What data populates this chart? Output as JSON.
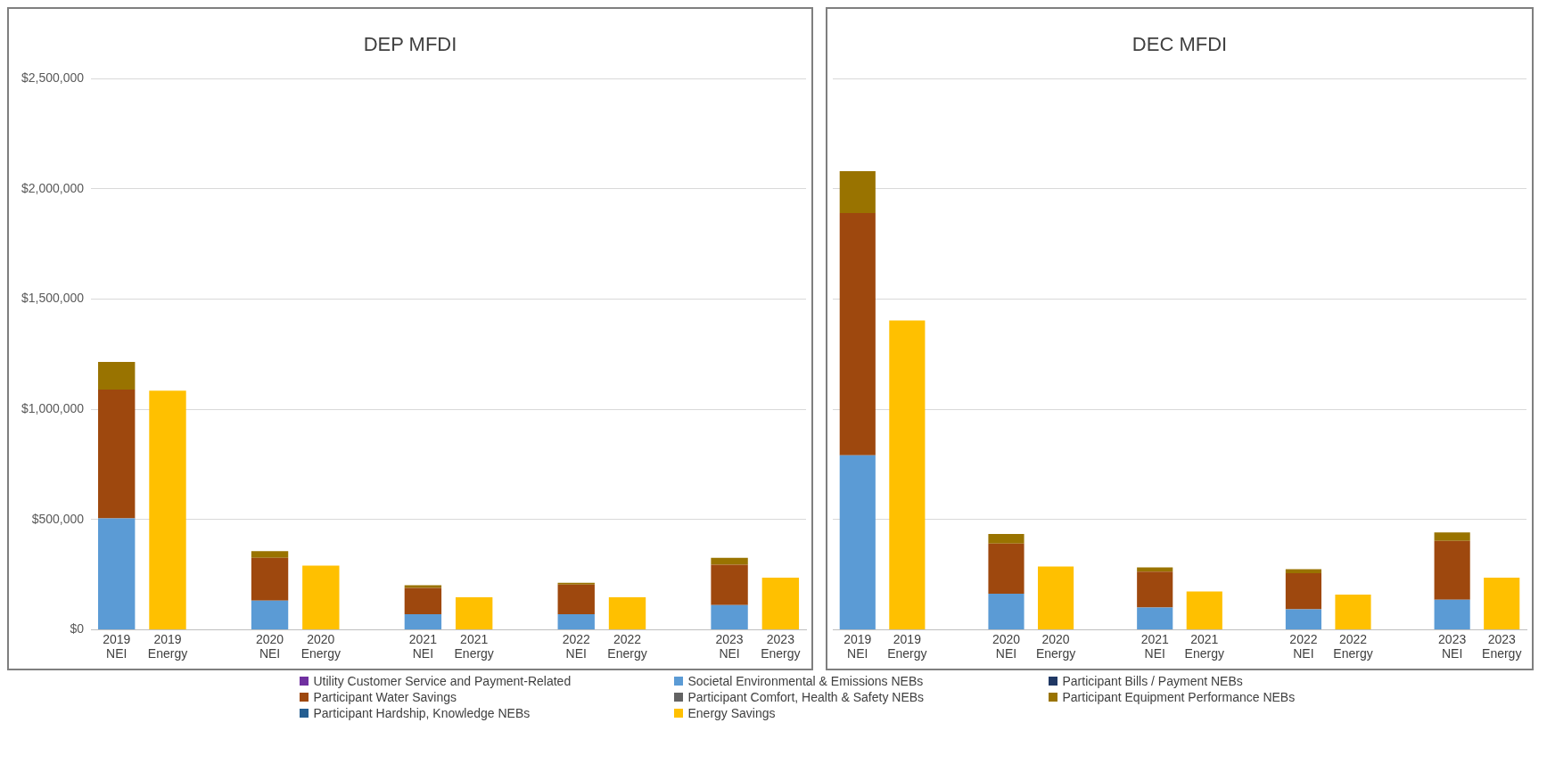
{
  "chart_data": [
    {
      "type": "bar",
      "title": "DEP MFDI",
      "stacked": true,
      "grid": "y",
      "legend": "bottom",
      "categories": [
        "2019 NEI",
        "2019 Energy",
        null,
        "2020 NEI",
        "2020 Energy",
        null,
        "2021 NEI",
        "2021 Energy",
        null,
        "2022 NEI",
        "2022 Energy",
        null,
        "2023 NEI",
        "2023 Energy"
      ],
      "ylim": [
        0,
        2500000
      ],
      "yticks": [
        {
          "value": 0,
          "label": "$0"
        },
        {
          "value": 500000,
          "label": "$500,000"
        },
        {
          "value": 1000000,
          "label": "$1,000,000"
        },
        {
          "value": 1500000,
          "label": "$1,500,000"
        },
        {
          "value": 2000000,
          "label": "$2,000,000"
        },
        {
          "value": 2500000,
          "label": "$2,500,000"
        }
      ],
      "series": [
        {
          "name": "Utility Customer Service and Payment-Related",
          "color": "#7030a0",
          "values": [
            null,
            null,
            null,
            null,
            null,
            null,
            null,
            null,
            null,
            null,
            null,
            null,
            null,
            null
          ]
        },
        {
          "name": "Societal Environmental & Emissions NEBs",
          "color": "#5b9bd5",
          "values": [
            505000,
            null,
            null,
            132000,
            null,
            null,
            70000,
            null,
            null,
            70000,
            null,
            null,
            112000,
            null
          ]
        },
        {
          "name": "Participant Bills / Payment NEBs",
          "color": "#203864",
          "values": [
            null,
            null,
            null,
            null,
            null,
            null,
            null,
            null,
            null,
            null,
            null,
            null,
            null,
            null
          ]
        },
        {
          "name": "Participant Water Savings",
          "color": "#9e480e",
          "values": [
            585000,
            null,
            null,
            194000,
            null,
            null,
            120000,
            null,
            null,
            135000,
            null,
            null,
            183000,
            null
          ]
        },
        {
          "name": "Participant Comfort, Health & Safety NEBs",
          "color": "#636363",
          "values": [
            null,
            null,
            null,
            null,
            null,
            null,
            null,
            null,
            null,
            null,
            null,
            null,
            null,
            null
          ]
        },
        {
          "name": "Participant Equipment Performance NEBs",
          "color": "#997300",
          "values": [
            125000,
            null,
            null,
            31000,
            null,
            null,
            12000,
            null,
            null,
            8000,
            null,
            null,
            31000,
            null
          ]
        },
        {
          "name": "Participant Hardship, Knowledge NEBs",
          "color": "#255e91",
          "values": [
            null,
            null,
            null,
            null,
            null,
            null,
            null,
            null,
            null,
            null,
            null,
            null,
            null,
            null
          ]
        },
        {
          "name": "Energy Savings",
          "color": "#ffc000",
          "values": [
            null,
            1085000,
            null,
            null,
            291000,
            null,
            null,
            147000,
            null,
            null,
            147000,
            null,
            null,
            236000
          ]
        }
      ]
    },
    {
      "type": "bar",
      "title": "DEC MFDI",
      "stacked": true,
      "grid": "y",
      "tick_labels": "x",
      "categories": [
        "2019 NEI",
        "2019 Energy",
        null,
        "2020 NEI",
        "2020 Energy",
        null,
        "2021 NEI",
        "2021 Energy",
        null,
        "2022 NEI",
        "2022 Energy",
        null,
        "2023 NEI",
        "2023 Energy"
      ],
      "ylim": [
        0,
        2500000
      ],
      "yticks": [
        {
          "value": 0,
          "label": null
        },
        {
          "value": 500000,
          "label": null
        },
        {
          "value": 1000000,
          "label": null
        },
        {
          "value": 1500000,
          "label": null
        },
        {
          "value": 2000000,
          "label": null
        },
        {
          "value": 2500000,
          "label": null
        }
      ],
      "series": [
        {
          "color": "#7030a0",
          "values": [
            null,
            null,
            null,
            null,
            null,
            null,
            null,
            null,
            null,
            null,
            null,
            null,
            null,
            null
          ]
        },
        {
          "color": "#5b9bd5",
          "values": [
            791000,
            null,
            null,
            163000,
            null,
            null,
            101000,
            null,
            null,
            93000,
            null,
            null,
            136000,
            null
          ]
        },
        {
          "color": "#203864",
          "values": [
            null,
            null,
            null,
            null,
            null,
            null,
            null,
            null,
            null,
            null,
            null,
            null,
            null,
            null
          ]
        },
        {
          "color": "#9e480e",
          "values": [
            1100000,
            null,
            null,
            228000,
            null,
            null,
            163000,
            null,
            null,
            163000,
            null,
            null,
            267000,
            null
          ]
        },
        {
          "color": "#636363",
          "values": [
            null,
            null,
            null,
            null,
            null,
            null,
            null,
            null,
            null,
            null,
            null,
            null,
            null,
            null
          ]
        },
        {
          "color": "#997300",
          "values": [
            190000,
            null,
            null,
            43000,
            null,
            null,
            19000,
            null,
            null,
            19000,
            null,
            null,
            39000,
            null
          ]
        },
        {
          "color": "#255e91",
          "values": [
            null,
            null,
            null,
            null,
            null,
            null,
            null,
            null,
            null,
            null,
            null,
            null,
            null,
            null
          ]
        },
        {
          "color": "#ffc000",
          "values": [
            null,
            1403000,
            null,
            null,
            287000,
            null,
            null,
            174000,
            null,
            null,
            159000,
            null,
            null,
            236000
          ]
        }
      ]
    }
  ]
}
